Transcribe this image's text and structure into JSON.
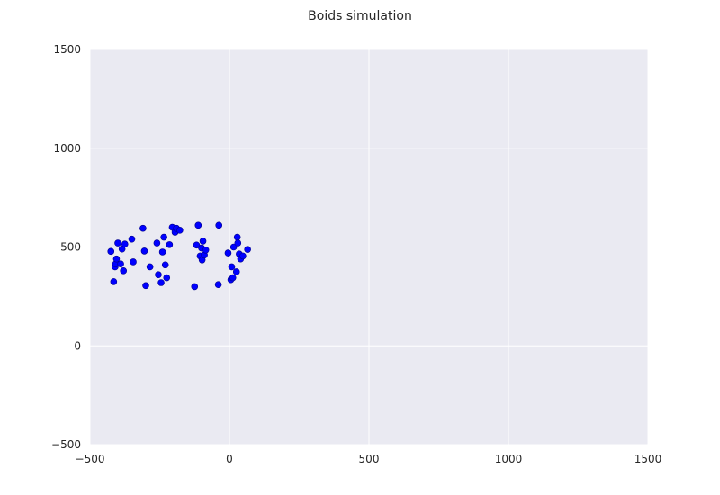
{
  "chart_data": {
    "type": "scatter",
    "title": "Boids simulation",
    "xlabel": "",
    "ylabel": "",
    "xlim": [
      -500,
      1500
    ],
    "ylim": [
      -500,
      1500
    ],
    "xticks": [
      -500,
      0,
      500,
      1000,
      1500
    ],
    "yticks": [
      -500,
      0,
      500,
      1000,
      1500
    ],
    "xtick_labels": [
      "−500",
      "0",
      "500",
      "1000",
      "1500"
    ],
    "ytick_labels": [
      "−500",
      "0",
      "500",
      "1000",
      "1500"
    ],
    "grid": true,
    "colors": {
      "plot_background": "#eaeaf2",
      "grid": "#ffffff",
      "marker": "#0000ff",
      "marker_edge": "#00008b"
    },
    "series": [
      {
        "x": [
          -425,
          -415,
          -410,
          -408,
          -405,
          -400,
          -390,
          -385,
          -380,
          -375,
          -350,
          -345,
          -310,
          -305,
          -300,
          -285,
          -260,
          -255,
          -245,
          -240,
          -235,
          -230,
          -225,
          -215,
          -205,
          -195,
          -190,
          -178,
          -125,
          -118,
          -112,
          -105,
          -100,
          -98,
          -95,
          -90,
          -85,
          -40,
          -38,
          -5,
          5,
          8,
          12,
          15,
          25,
          28,
          30,
          35,
          40,
          48,
          65
        ],
        "y": [
          478,
          325,
          400,
          415,
          440,
          520,
          415,
          490,
          380,
          515,
          540,
          425,
          595,
          480,
          305,
          400,
          520,
          360,
          320,
          475,
          550,
          410,
          345,
          512,
          600,
          575,
          595,
          585,
          300,
          510,
          610,
          455,
          495,
          435,
          530,
          460,
          485,
          310,
          610,
          470,
          335,
          400,
          345,
          500,
          375,
          550,
          520,
          465,
          440,
          455,
          488
        ]
      }
    ]
  }
}
